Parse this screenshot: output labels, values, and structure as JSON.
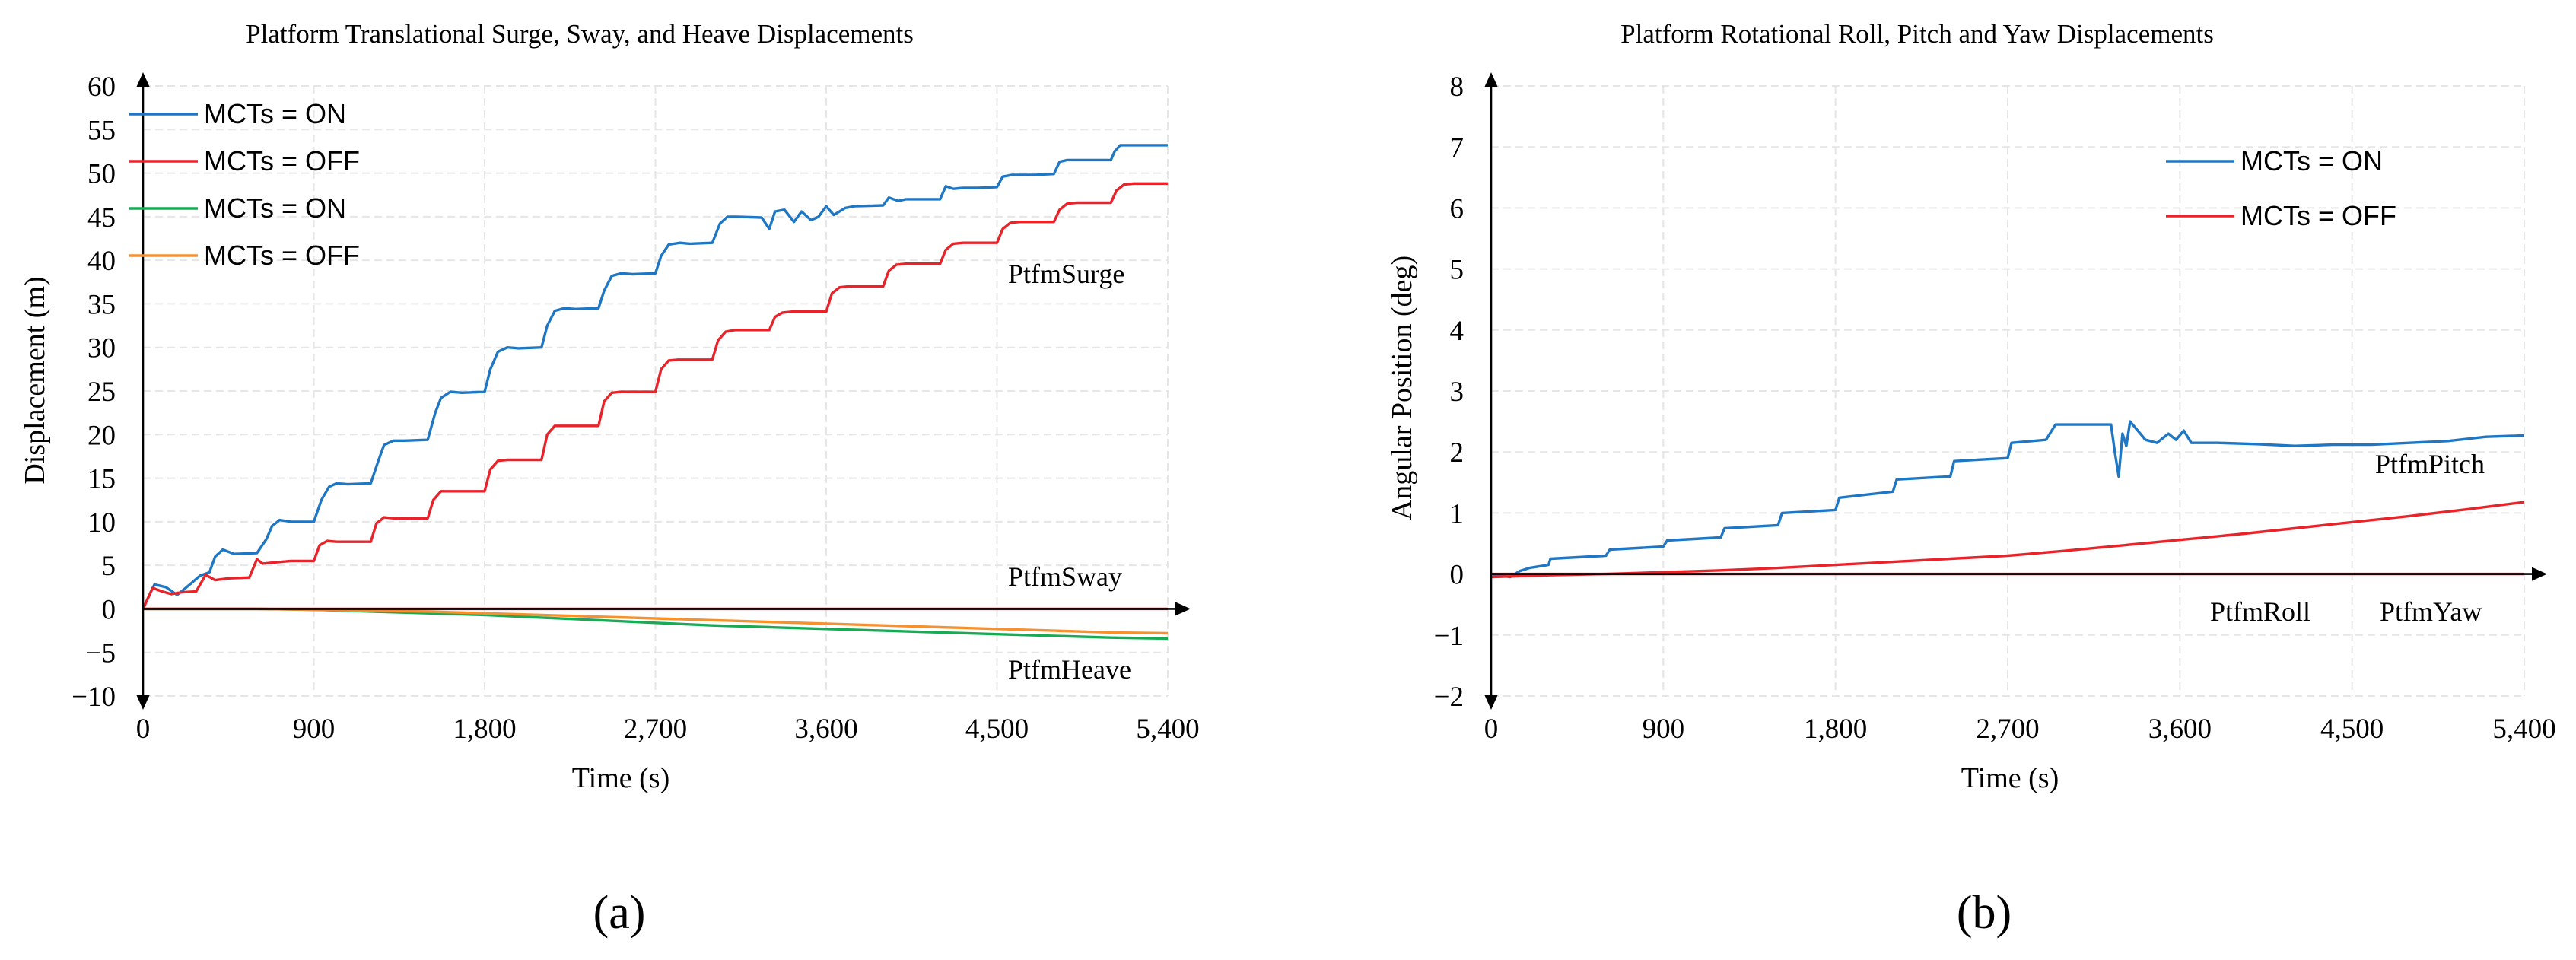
{
  "chart_data": [
    {
      "id": "a",
      "type": "line",
      "title": "Platform Translational Surge, Sway, and Heave Displacements",
      "xlabel": "Time (s)",
      "ylabel": "Displacement (m)",
      "xlim": [
        0,
        5400
      ],
      "ylim": [
        -10,
        60
      ],
      "xticks": [
        0,
        900,
        1800,
        2700,
        3600,
        4500,
        5400
      ],
      "xtick_labels": [
        "0",
        "900",
        "1,800",
        "2,700",
        "3,600",
        "4,500",
        "5,400"
      ],
      "yticks": [
        -10,
        -5,
        0,
        5,
        10,
        15,
        20,
        25,
        30,
        35,
        40,
        45,
        50,
        55,
        60
      ],
      "ytick_labels": [
        "−10",
        "−5",
        "0",
        "5",
        "10",
        "15",
        "20",
        "25",
        "30",
        "35",
        "40",
        "45",
        "50",
        "55",
        "60"
      ],
      "grid": true,
      "legend_position": "top-left",
      "annotations": [
        {
          "text": "PtfmSurge",
          "x": 4700,
          "y": 42
        },
        {
          "text": "PtfmSway",
          "x": 4700,
          "y": 2
        },
        {
          "text": "PtfmHeave",
          "x": 4700,
          "y": -7
        }
      ],
      "series": [
        {
          "name": "MCTs = ON",
          "color": "#1f77c4",
          "x": [
            0,
            60,
            120,
            180,
            230,
            300,
            350,
            380,
            420,
            480,
            600,
            650,
            680,
            720,
            780,
            900,
            940,
            980,
            1020,
            1080,
            1200,
            1240,
            1270,
            1320,
            1380,
            1500,
            1540,
            1570,
            1620,
            1680,
            1800,
            1830,
            1870,
            1920,
            1980,
            2100,
            2130,
            2170,
            2220,
            2280,
            2400,
            2430,
            2470,
            2520,
            2580,
            2700,
            2730,
            2770,
            2830,
            2880,
            3000,
            3040,
            3080,
            3130,
            3260,
            3300,
            3330,
            3380,
            3430,
            3470,
            3520,
            3560,
            3600,
            3640,
            3700,
            3750,
            3900,
            3930,
            3980,
            4020,
            4100,
            4200,
            4230,
            4270,
            4320,
            4400,
            4500,
            4530,
            4580,
            4620,
            4700,
            4800,
            4830,
            4870,
            4920,
            5000,
            5100,
            5120,
            5150,
            5200,
            5400
          ],
          "values": [
            0,
            2.8,
            2.5,
            1.6,
            2.5,
            3.8,
            4.2,
            6.0,
            6.8,
            6.3,
            6.4,
            8.0,
            9.5,
            10.2,
            10.0,
            10.0,
            12.5,
            14.0,
            14.4,
            14.3,
            14.4,
            17.0,
            18.8,
            19.3,
            19.3,
            19.4,
            22.5,
            24.2,
            24.9,
            24.8,
            24.9,
            27.5,
            29.5,
            30.0,
            29.9,
            30.0,
            32.5,
            34.2,
            34.5,
            34.4,
            34.5,
            36.5,
            38.2,
            38.5,
            38.4,
            38.5,
            40.5,
            41.8,
            42.0,
            41.9,
            42.0,
            44.2,
            45.0,
            45.0,
            44.9,
            43.6,
            45.6,
            45.8,
            44.4,
            45.6,
            44.6,
            45.0,
            46.2,
            45.2,
            46.0,
            46.2,
            46.3,
            47.2,
            46.8,
            47.0,
            47.0,
            47.0,
            48.5,
            48.2,
            48.3,
            48.3,
            48.4,
            49.6,
            49.8,
            49.8,
            49.8,
            49.9,
            51.3,
            51.5,
            51.5,
            51.5,
            51.5,
            52.5,
            53.2,
            53.2,
            53.2
          ]
        },
        {
          "name": "MCTs = OFF",
          "color": "#e8242a",
          "x": [
            0,
            50,
            100,
            150,
            200,
            280,
            330,
            380,
            450,
            560,
            600,
            630,
            680,
            780,
            900,
            930,
            970,
            1020,
            1080,
            1200,
            1230,
            1270,
            1320,
            1400,
            1500,
            1530,
            1570,
            1620,
            1700,
            1800,
            1830,
            1870,
            1920,
            2000,
            2100,
            2130,
            2170,
            2220,
            2300,
            2400,
            2430,
            2470,
            2520,
            2600,
            2700,
            2730,
            2770,
            2820,
            2900,
            3000,
            3030,
            3070,
            3120,
            3200,
            3300,
            3330,
            3370,
            3420,
            3500,
            3600,
            3630,
            3670,
            3720,
            3800,
            3900,
            3930,
            3970,
            4020,
            4100,
            4200,
            4230,
            4270,
            4320,
            4400,
            4500,
            4530,
            4570,
            4620,
            4700,
            4800,
            4830,
            4870,
            4920,
            5000,
            5100,
            5130,
            5170,
            5220,
            5400
          ],
          "values": [
            0,
            2.4,
            2.0,
            1.7,
            1.9,
            2.0,
            3.9,
            3.3,
            3.5,
            3.6,
            5.7,
            5.2,
            5.3,
            5.5,
            5.5,
            7.3,
            7.8,
            7.7,
            7.7,
            7.7,
            9.8,
            10.5,
            10.4,
            10.4,
            10.4,
            12.5,
            13.5,
            13.5,
            13.5,
            13.5,
            16.0,
            17.0,
            17.1,
            17.1,
            17.1,
            20.0,
            21.0,
            21.0,
            21.0,
            21.0,
            23.8,
            24.8,
            24.9,
            24.9,
            24.9,
            27.5,
            28.5,
            28.6,
            28.6,
            28.6,
            30.8,
            31.8,
            32.0,
            32.0,
            32.0,
            33.5,
            34.0,
            34.1,
            34.1,
            34.1,
            36.2,
            36.9,
            37.0,
            37.0,
            37.0,
            38.8,
            39.5,
            39.6,
            39.6,
            39.6,
            41.2,
            41.9,
            42.0,
            42.0,
            42.0,
            43.6,
            44.3,
            44.4,
            44.4,
            44.4,
            45.8,
            46.5,
            46.6,
            46.6,
            46.6,
            48.0,
            48.7,
            48.8,
            48.8
          ]
        },
        {
          "name": "MCTs = ON",
          "color": "#1aaa55",
          "x": [
            0,
            300,
            600,
            900,
            1200,
            1500,
            1800,
            2100,
            2400,
            2700,
            3000,
            3300,
            3600,
            3900,
            4200,
            4500,
            4800,
            5100,
            5400
          ],
          "values": [
            0,
            0,
            0,
            -0.1,
            -0.3,
            -0.5,
            -0.7,
            -1.0,
            -1.3,
            -1.6,
            -1.9,
            -2.1,
            -2.3,
            -2.5,
            -2.7,
            -2.9,
            -3.1,
            -3.3,
            -3.4
          ]
        },
        {
          "name": "MCTs = OFF",
          "color": "#f5922f",
          "x": [
            0,
            300,
            600,
            900,
            1200,
            1500,
            1800,
            2100,
            2400,
            2700,
            3000,
            3300,
            3600,
            3900,
            4200,
            4500,
            4800,
            5100,
            5400
          ],
          "values": [
            0,
            0,
            0,
            -0.1,
            -0.2,
            -0.3,
            -0.5,
            -0.7,
            -0.9,
            -1.1,
            -1.3,
            -1.5,
            -1.7,
            -1.9,
            -2.1,
            -2.3,
            -2.5,
            -2.7,
            -2.8
          ]
        },
        {
          "name": "PtfmSway",
          "color": "#e8242a",
          "x": [
            0,
            5400
          ],
          "values": [
            0,
            0
          ],
          "in_legend": false
        }
      ],
      "legend": [
        "MCTs = ON",
        "MCTs = OFF",
        "MCTs = ON",
        "MCTs = OFF"
      ]
    },
    {
      "id": "b",
      "type": "line",
      "title": "Platform Rotational Roll, Pitch and Yaw Displacements",
      "xlabel": "Time (s)",
      "ylabel": "Angular Position (deg)",
      "xlim": [
        0,
        5400
      ],
      "ylim": [
        -2,
        8
      ],
      "xticks": [
        0,
        900,
        1800,
        2700,
        3600,
        4500,
        5400
      ],
      "xtick_labels": [
        "0",
        "900",
        "1,800",
        "2,700",
        "3,600",
        "4,500",
        "5,400"
      ],
      "yticks": [
        -2,
        -1,
        0,
        1,
        2,
        3,
        4,
        5,
        6,
        7,
        8
      ],
      "ytick_labels": [
        "−2",
        "−1",
        "0",
        "1",
        "2",
        "3",
        "4",
        "5",
        "6",
        "7",
        "8"
      ],
      "grid": true,
      "legend_position": "top-right",
      "annotations": [
        {
          "text": "PtfmPitch",
          "x": 4600,
          "y": 1.7
        },
        {
          "text": "PtfmRoll",
          "x": 3900,
          "y": -0.75
        },
        {
          "text": "PtfmYaw",
          "x": 4800,
          "y": -0.75
        }
      ],
      "series": [
        {
          "name": "MCTs = ON",
          "color": "#1f77c4",
          "x": [
            0,
            100,
            150,
            200,
            300,
            310,
            600,
            620,
            900,
            920,
            1200,
            1220,
            1500,
            1520,
            1800,
            1820,
            2100,
            2120,
            2400,
            2420,
            2700,
            2720,
            2900,
            2950,
            3240,
            3260,
            3280,
            3300,
            3320,
            3340,
            3380,
            3420,
            3480,
            3540,
            3580,
            3620,
            3660,
            3800,
            4000,
            4200,
            4400,
            4600,
            4800,
            5000,
            5200,
            5400
          ],
          "values": [
            0,
            -0.05,
            0.05,
            0.1,
            0.15,
            0.25,
            0.3,
            0.4,
            0.45,
            0.55,
            0.6,
            0.75,
            0.8,
            1.0,
            1.05,
            1.25,
            1.35,
            1.55,
            1.6,
            1.85,
            1.9,
            2.15,
            2.2,
            2.45,
            2.45,
            2.0,
            1.6,
            2.3,
            2.1,
            2.5,
            2.35,
            2.2,
            2.15,
            2.3,
            2.2,
            2.35,
            2.15,
            2.15,
            2.13,
            2.1,
            2.12,
            2.12,
            2.15,
            2.18,
            2.25,
            2.27
          ]
        },
        {
          "name": "MCTs = OFF",
          "color": "#e8242a",
          "x": [
            0,
            300,
            600,
            900,
            1200,
            1500,
            1800,
            2100,
            2400,
            2700,
            3000,
            3300,
            3600,
            3900,
            4200,
            4500,
            4800,
            5100,
            5400
          ],
          "values": [
            -0.05,
            -0.02,
            0.0,
            0.03,
            0.06,
            0.1,
            0.15,
            0.2,
            0.25,
            0.3,
            0.38,
            0.47,
            0.56,
            0.65,
            0.75,
            0.85,
            0.95,
            1.06,
            1.18
          ]
        },
        {
          "name": "PtfmRoll/PtfmYaw",
          "color": "#e8242a",
          "x": [
            0,
            5400
          ],
          "values": [
            0,
            0
          ],
          "in_legend": false
        }
      ],
      "legend": [
        "MCTs = ON",
        "MCTs = OFF"
      ]
    }
  ],
  "captions": [
    "(a)",
    "(b)"
  ]
}
